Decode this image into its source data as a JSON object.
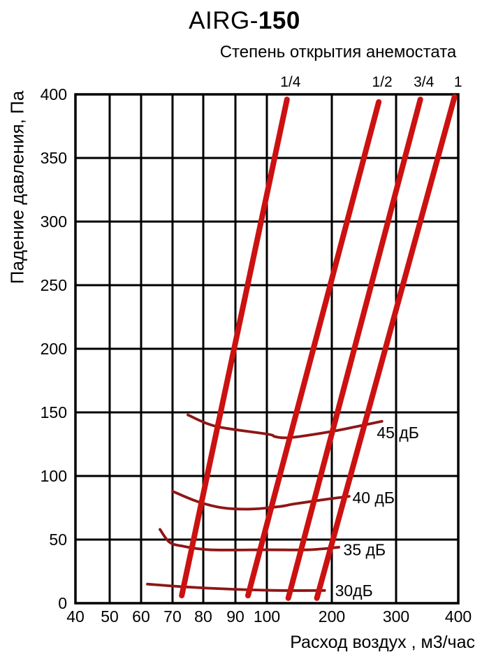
{
  "title": {
    "prefix": "AIRG-",
    "number": "150"
  },
  "subtitle": "Степень открытия анемостата",
  "axes": {
    "x_title": "Расход воздух , м3/час",
    "y_title": "Падение давления, Па"
  },
  "colors": {
    "grid": "#000000",
    "opening_line": "#cc1111",
    "noise_curve": "#8e1616",
    "text": "#000000"
  },
  "chart_data": {
    "type": "line",
    "title": "AIRG-150",
    "subtitle": "Степень открытия анемостата",
    "xlabel": "Расход воздух , м3/час",
    "ylabel": "Падение давления, Па",
    "xlim": [
      40,
      400
    ],
    "ylim": [
      0,
      400
    ],
    "grid": true,
    "x_scale_note": "compressed scale: 40-100 (step 10) fills left half, 100-400 (step 100) fills right half",
    "x_ticks": [
      {
        "value": 40,
        "pos": 0.0
      },
      {
        "value": 50,
        "pos": 0.0894
      },
      {
        "value": 60,
        "pos": 0.1715
      },
      {
        "value": 70,
        "pos": 0.2536
      },
      {
        "value": 80,
        "pos": 0.3339
      },
      {
        "value": 90,
        "pos": 0.4179
      },
      {
        "value": 100,
        "pos": 0.5
      },
      {
        "value": 200,
        "pos": 0.6697
      },
      {
        "value": 300,
        "pos": 0.8376
      },
      {
        "value": 400,
        "pos": 1.0
      }
    ],
    "y_ticks": [
      0,
      50,
      100,
      150,
      200,
      250,
      300,
      350,
      400
    ],
    "opening_series_title": "Степень открытия анемостата",
    "opening_series": [
      {
        "label": "1/4",
        "points": [
          [
            73,
            6
          ],
          [
            131,
            396
          ]
        ]
      },
      {
        "label": "1/2",
        "points": [
          [
            94,
            6
          ],
          [
            273,
            394
          ]
        ]
      },
      {
        "label": "3/4",
        "points": [
          [
            133,
            4
          ],
          [
            339,
            396
          ]
        ]
      },
      {
        "label": "1",
        "points": [
          [
            177,
            4
          ],
          [
            394,
            398
          ]
        ]
      }
    ],
    "noise_series": [
      {
        "label": "45 дБ",
        "label_at": [
          270,
          134
        ],
        "points": [
          [
            75,
            148
          ],
          [
            84,
            139
          ],
          [
            100,
            133
          ],
          [
            112,
            131
          ],
          [
            127,
            130
          ],
          [
            150,
            131
          ],
          [
            200,
            135
          ],
          [
            240,
            139
          ],
          [
            278,
            143
          ]
        ]
      },
      {
        "label": "40 дБ",
        "label_at": [
          232,
          83
        ],
        "points": [
          [
            70,
            88
          ],
          [
            78,
            80
          ],
          [
            86,
            75
          ],
          [
            95,
            74
          ],
          [
            120,
            76
          ],
          [
            142,
            78
          ],
          [
            196,
            82
          ],
          [
            227,
            84
          ]
        ]
      },
      {
        "label": "35 дБ",
        "label_at": [
          218,
          42
        ],
        "points": [
          [
            66,
            58
          ],
          [
            69,
            48
          ],
          [
            73,
            45
          ],
          [
            82,
            42
          ],
          [
            100,
            42
          ],
          [
            164,
            42
          ],
          [
            211,
            44
          ]
        ]
      },
      {
        "label": "30дБ",
        "label_at": [
          205,
          10
        ],
        "points": [
          [
            62,
            15
          ],
          [
            73,
            13
          ],
          [
            89,
            11
          ],
          [
            120,
            10
          ],
          [
            189,
            10
          ]
        ]
      }
    ]
  }
}
